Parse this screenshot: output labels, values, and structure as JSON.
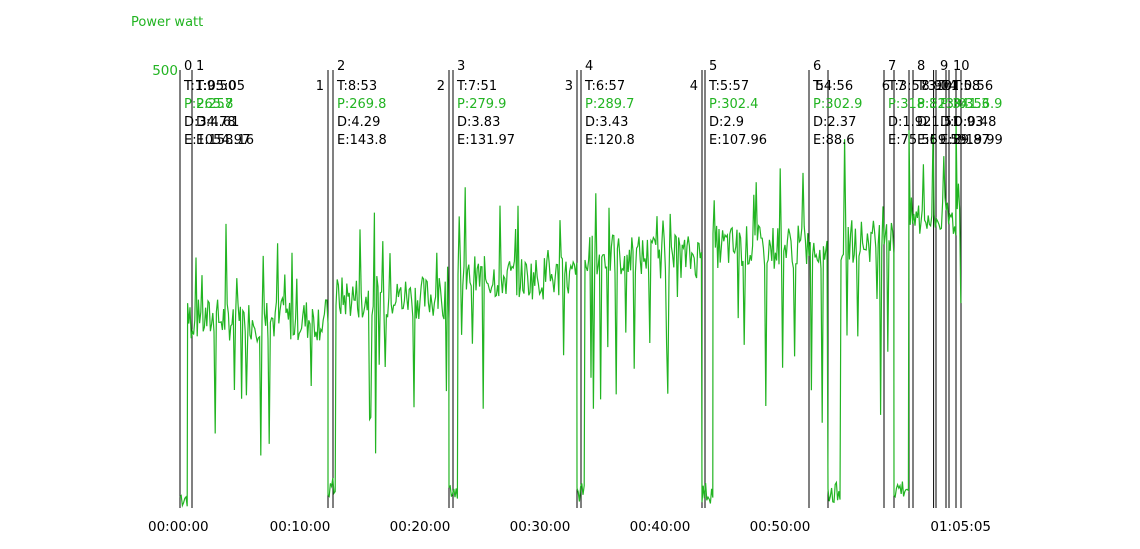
{
  "chart_data": {
    "type": "line",
    "title": "",
    "ylabel": "Power watt",
    "xlabel": "",
    "ylim": [
      0,
      500
    ],
    "ytick_labels": [
      {
        "value": 500,
        "label": "500"
      }
    ],
    "x_range_seconds": [
      0,
      3905
    ],
    "xtick_labels": [
      {
        "t": 0,
        "label": "00:00:00"
      },
      {
        "t": 600,
        "label": "00:10:00"
      },
      {
        "t": 1200,
        "label": "00:20:00"
      },
      {
        "t": 1800,
        "label": "00:30:00"
      },
      {
        "t": 2400,
        "label": "00:40:00"
      },
      {
        "t": 3000,
        "label": "00:50:00"
      },
      {
        "t": 3905,
        "label": "01:05:05"
      }
    ],
    "grid": false,
    "series": [
      {
        "name": "Power watt",
        "color": "#22b422"
      }
    ],
    "segments": [
      {
        "t0": 0,
        "t1": 38,
        "level": 0
      },
      {
        "t0": 38,
        "t1": 740,
        "level": 215
      },
      {
        "t0": 740,
        "t1": 780,
        "level": 10
      },
      {
        "t0": 780,
        "t1": 1345,
        "level": 240
      },
      {
        "t0": 1345,
        "t1": 1390,
        "level": 10
      },
      {
        "t0": 1390,
        "t1": 1985,
        "level": 263
      },
      {
        "t0": 1985,
        "t1": 2025,
        "level": 5
      },
      {
        "t0": 2025,
        "t1": 2610,
        "level": 287
      },
      {
        "t0": 2610,
        "t1": 2665,
        "level": 5
      },
      {
        "t0": 2665,
        "t1": 3240,
        "level": 298
      },
      {
        "t0": 3240,
        "t1": 3305,
        "level": 5
      },
      {
        "t0": 3305,
        "t1": 3570,
        "level": 305
      },
      {
        "t0": 3570,
        "t1": 3645,
        "level": 10
      },
      {
        "t0": 3645,
        "t1": 3880,
        "level": 330
      },
      {
        "t0": 3880,
        "t1": 3905,
        "level": 365
      }
    ],
    "intervals": [
      {
        "id": "0",
        "t_start": 0,
        "t_end": 60,
        "lines": [
          "T:1:05:05",
          "P:265.8",
          "D:34.78",
          "E:1054.97"
        ]
      },
      {
        "id": "1",
        "t_start": 60,
        "t_end": 765,
        "lines": [
          "T:9:50",
          "P:257",
          "D:4.61",
          "E:158.16"
        ]
      },
      {
        "id": "2",
        "t_start": 765,
        "t_end": 1365,
        "lines": [
          "T:8:53",
          "P:269.8",
          "D:4.29",
          "E:143.8"
        ]
      },
      {
        "id": "3",
        "t_start": 1365,
        "t_end": 2005,
        "lines": [
          "T:7:51",
          "P:279.9",
          "D:3.83",
          "E:131.97"
        ]
      },
      {
        "id": "4",
        "t_start": 2005,
        "t_end": 2625,
        "lines": [
          "T:6:57",
          "P:289.7",
          "D:3.43",
          "E:120.8"
        ]
      },
      {
        "id": "5",
        "t_start": 2625,
        "t_end": 3145,
        "lines": [
          "T:5:57",
          "P:302.4",
          "D:2.9",
          "E:107.96"
        ]
      },
      {
        "id": "6",
        "t_start": 3145,
        "t_end": 3520,
        "lines": [
          "T:4:56",
          "P:302.9",
          "D:2.37",
          "E:88.6"
        ]
      },
      {
        "id": "7",
        "t_start": 3520,
        "t_end": 3665,
        "lines": [
          "T:3:57",
          "P:318.8",
          "D:1.92",
          "E:75.56"
        ]
      },
      {
        "id": "8",
        "t_start": 3665,
        "t_end": 3780,
        "lines": [
          "T:3:04",
          "P:323.0",
          "D:1.51",
          "E:59.59"
        ]
      },
      {
        "id": "9",
        "t_start": 3780,
        "t_end": 3845,
        "lines": [
          "T:1:58",
          "P:341.3",
          "D:0.93",
          "E:39.87"
        ]
      },
      {
        "id": "10",
        "t_start": 3845,
        "t_end": 3905,
        "lines": [
          "T:0:56",
          "P:356.9",
          "D:0.48",
          "E:19.99"
        ]
      }
    ],
    "end_labels": [
      {
        "id": "1",
        "t": 740
      },
      {
        "id": "2",
        "t": 1345
      },
      {
        "id": "3",
        "t": 1985
      },
      {
        "id": "4",
        "t": 2610
      },
      {
        "id": "5",
        "t": 3240
      },
      {
        "id": "6",
        "t": 3570
      },
      {
        "id": "7",
        "t": 3645
      },
      {
        "id": "8",
        "t": 3768
      },
      {
        "id": "9",
        "t": 3830
      },
      {
        "id": "10",
        "t": 3880
      }
    ],
    "label_colors": {
      "text": "#000000",
      "power": "#22b422"
    }
  }
}
